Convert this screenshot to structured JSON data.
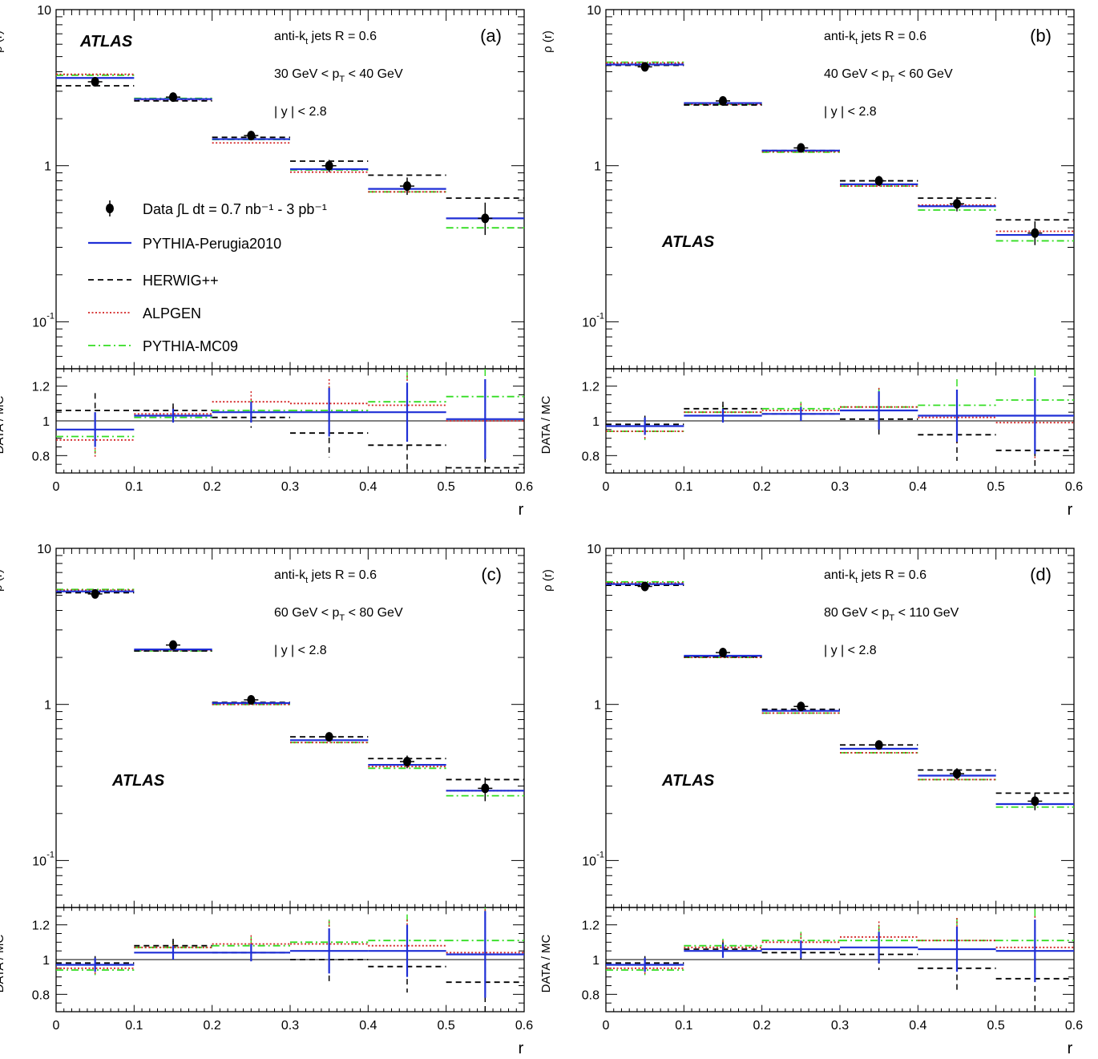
{
  "figure": {
    "legend_items": [
      {
        "key": "data",
        "label": "Data ∫L dt = 0.7 nb⁻¹ - 3 pb⁻¹"
      },
      {
        "key": "perugia",
        "label": "PYTHIA-Perugia2010"
      },
      {
        "key": "herwig",
        "label": "HERWIG++"
      },
      {
        "key": "alpgen",
        "label": "ALPGEN"
      },
      {
        "key": "mc09",
        "label": "PYTHIA-MC09"
      }
    ],
    "colors": {
      "data": "#000000",
      "perugia": "#1f2fd6",
      "herwig": "#000000",
      "alpgen": "#d22020",
      "mc09": "#33dd22"
    }
  },
  "chart_data": [
    {
      "type": "line",
      "panel_label": "(a)",
      "experiment": "ATLAS",
      "info": [
        "anti-kt jets R = 0.6",
        "30 GeV < pT < 40 GeV",
        "| y | < 2.8"
      ],
      "xlabel": "r",
      "ylabel_top": "ρ (r)",
      "ylabel_bottom": "DATA / MC",
      "xlim": [
        0,
        0.6
      ],
      "ylim_top": [
        0.05,
        10
      ],
      "ylim_bottom": [
        0.7,
        1.3
      ],
      "yscale_top": "log",
      "x_ticks": [
        "0",
        "0.1",
        "0.2",
        "0.3",
        "0.4",
        "0.5",
        "0.6"
      ],
      "y_ticks_top": [
        "10⁻¹",
        "1",
        "10"
      ],
      "y_ticks_bottom": [
        "0.8",
        "1",
        "1.2"
      ],
      "bins": [
        0.05,
        0.15,
        0.25,
        0.35,
        0.45,
        0.55
      ],
      "data": {
        "values": [
          3.45,
          2.75,
          1.56,
          1.0,
          0.74,
          0.46
        ],
        "err_lo": [
          0.2,
          0.12,
          0.08,
          0.09,
          0.09,
          0.1
        ],
        "err_hi": [
          0.2,
          0.12,
          0.08,
          0.09,
          0.1,
          0.12
        ]
      },
      "series": [
        {
          "name": "PYTHIA-Perugia2010",
          "values": [
            3.65,
            2.67,
            1.48,
            0.95,
            0.71,
            0.46
          ]
        },
        {
          "name": "HERWIG++",
          "values": [
            3.25,
            2.6,
            1.52,
            1.07,
            0.87,
            0.62
          ]
        },
        {
          "name": "ALPGEN",
          "values": [
            3.85,
            2.65,
            1.4,
            0.91,
            0.68,
            0.46
          ]
        },
        {
          "name": "PYTHIA-MC09",
          "values": [
            3.8,
            2.7,
            1.47,
            0.94,
            0.68,
            0.4
          ]
        }
      ],
      "ratio": {
        "data_err": [
          0.1,
          0.04,
          0.06,
          0.14,
          0.17,
          0.23
        ],
        "series": [
          {
            "name": "PYTHIA-Perugia2010",
            "values": [
              0.95,
              1.03,
              1.05,
              1.05,
              1.05,
              1.01
            ]
          },
          {
            "name": "HERWIG++",
            "values": [
              1.06,
              1.06,
              1.02,
              0.93,
              0.86,
              0.73
            ]
          },
          {
            "name": "ALPGEN",
            "values": [
              0.89,
              1.04,
              1.11,
              1.1,
              1.09,
              1.0
            ]
          },
          {
            "name": "PYTHIA-MC09",
            "values": [
              0.91,
              1.02,
              1.06,
              1.06,
              1.11,
              1.14
            ]
          }
        ]
      }
    },
    {
      "type": "line",
      "panel_label": "(b)",
      "experiment": "ATLAS",
      "info": [
        "anti-kt jets R = 0.6",
        "40 GeV < pT < 60 GeV",
        "| y | < 2.8"
      ],
      "xlabel": "r",
      "ylabel_top": "ρ (r)",
      "ylabel_bottom": "DATA / MC",
      "xlim": [
        0,
        0.6
      ],
      "ylim_top": [
        0.05,
        10
      ],
      "ylim_bottom": [
        0.7,
        1.3
      ],
      "yscale_top": "log",
      "x_ticks": [
        "0",
        "0.1",
        "0.2",
        "0.3",
        "0.4",
        "0.5",
        "0.6"
      ],
      "y_ticks_top": [
        "10⁻¹",
        "1",
        "10"
      ],
      "y_ticks_bottom": [
        "0.8",
        "1",
        "1.2"
      ],
      "bins": [
        0.05,
        0.15,
        0.25,
        0.35,
        0.45,
        0.55
      ],
      "data": {
        "values": [
          4.3,
          2.6,
          1.3,
          0.8,
          0.57,
          0.37
        ],
        "err_lo": [
          0.18,
          0.1,
          0.06,
          0.06,
          0.06,
          0.06
        ],
        "err_hi": [
          0.18,
          0.1,
          0.06,
          0.06,
          0.06,
          0.07
        ]
      },
      "series": [
        {
          "name": "PYTHIA-Perugia2010",
          "values": [
            4.45,
            2.52,
            1.25,
            0.76,
            0.55,
            0.36
          ]
        },
        {
          "name": "HERWIG++",
          "values": [
            4.4,
            2.45,
            1.25,
            0.8,
            0.62,
            0.45
          ]
        },
        {
          "name": "ALPGEN",
          "values": [
            4.55,
            2.47,
            1.23,
            0.74,
            0.56,
            0.38
          ]
        },
        {
          "name": "PYTHIA-MC09",
          "values": [
            4.6,
            2.47,
            1.22,
            0.74,
            0.52,
            0.33
          ]
        }
      ],
      "ratio": {
        "data_err": [
          0.05,
          0.04,
          0.04,
          0.11,
          0.15,
          0.22
        ],
        "series": [
          {
            "name": "PYTHIA-Perugia2010",
            "values": [
              0.97,
              1.03,
              1.04,
              1.06,
              1.03,
              1.03
            ]
          },
          {
            "name": "HERWIG++",
            "values": [
              0.98,
              1.07,
              1.04,
              1.01,
              0.92,
              0.83
            ]
          },
          {
            "name": "ALPGEN",
            "values": [
              0.94,
              1.05,
              1.06,
              1.08,
              1.02,
              0.99
            ]
          },
          {
            "name": "PYTHIA-MC09",
            "values": [
              0.94,
              1.05,
              1.07,
              1.08,
              1.09,
              1.12
            ]
          }
        ]
      }
    },
    {
      "type": "line",
      "panel_label": "(c)",
      "experiment": "ATLAS",
      "info": [
        "anti-kt jets R = 0.6",
        "60 GeV < pT < 80 GeV",
        "| y | < 2.8"
      ],
      "xlabel": "r",
      "ylabel_top": "ρ (r)",
      "ylabel_bottom": "DATA / MC",
      "xlim": [
        0,
        0.6
      ],
      "ylim_top": [
        0.05,
        10
      ],
      "ylim_bottom": [
        0.7,
        1.3
      ],
      "yscale_top": "log",
      "x_ticks": [
        "0",
        "0.1",
        "0.2",
        "0.3",
        "0.4",
        "0.5",
        "0.6"
      ],
      "y_ticks_top": [
        "10⁻¹",
        "1",
        "10"
      ],
      "y_ticks_bottom": [
        "0.8",
        "1",
        "1.2"
      ],
      "bins": [
        0.05,
        0.15,
        0.25,
        0.35,
        0.45,
        0.55
      ],
      "data": {
        "values": [
          5.1,
          2.4,
          1.07,
          0.62,
          0.43,
          0.29
        ],
        "err_lo": [
          0.2,
          0.1,
          0.05,
          0.04,
          0.04,
          0.05
        ],
        "err_hi": [
          0.2,
          0.1,
          0.05,
          0.04,
          0.04,
          0.05
        ]
      },
      "series": [
        {
          "name": "PYTHIA-Perugia2010",
          "values": [
            5.3,
            2.25,
            1.02,
            0.59,
            0.41,
            0.28
          ]
        },
        {
          "name": "HERWIG++",
          "values": [
            5.2,
            2.2,
            1.03,
            0.62,
            0.45,
            0.33
          ]
        },
        {
          "name": "ALPGEN",
          "values": [
            5.4,
            2.22,
            1.0,
            0.57,
            0.4,
            0.28
          ]
        },
        {
          "name": "PYTHIA-MC09",
          "values": [
            5.45,
            2.2,
            1.0,
            0.57,
            0.39,
            0.26
          ]
        }
      ],
      "ratio": {
        "data_err": [
          0.04,
          0.04,
          0.05,
          0.13,
          0.15,
          0.25
        ],
        "series": [
          {
            "name": "PYTHIA-Perugia2010",
            "values": [
              0.97,
              1.04,
              1.04,
              1.05,
              1.05,
              1.03
            ]
          },
          {
            "name": "HERWIG++",
            "values": [
              0.98,
              1.08,
              1.04,
              1.0,
              0.96,
              0.87
            ]
          },
          {
            "name": "ALPGEN",
            "values": [
              0.95,
              1.07,
              1.09,
              1.09,
              1.08,
              1.04
            ]
          },
          {
            "name": "PYTHIA-MC09",
            "values": [
              0.94,
              1.07,
              1.08,
              1.1,
              1.11,
              1.11
            ]
          }
        ]
      }
    },
    {
      "type": "line",
      "panel_label": "(d)",
      "experiment": "ATLAS",
      "info": [
        "anti-kt jets R = 0.6",
        "80 GeV < pT < 110 GeV",
        "| y | < 2.8"
      ],
      "xlabel": "r",
      "ylabel_top": "ρ (r)",
      "ylabel_bottom": "DATA / MC",
      "xlim": [
        0,
        0.6
      ],
      "ylim_top": [
        0.05,
        10
      ],
      "ylim_bottom": [
        0.7,
        1.3
      ],
      "yscale_top": "log",
      "x_ticks": [
        "0",
        "0.1",
        "0.2",
        "0.3",
        "0.4",
        "0.5",
        "0.6"
      ],
      "y_ticks_top": [
        "10⁻¹",
        "1",
        "10"
      ],
      "y_ticks_bottom": [
        "0.8",
        "1",
        "1.2"
      ],
      "bins": [
        0.05,
        0.15,
        0.25,
        0.35,
        0.45,
        0.55
      ],
      "data": {
        "values": [
          5.7,
          2.15,
          0.97,
          0.55,
          0.36,
          0.24
        ],
        "err_lo": [
          0.2,
          0.08,
          0.04,
          0.03,
          0.03,
          0.03
        ],
        "err_hi": [
          0.2,
          0.08,
          0.04,
          0.03,
          0.03,
          0.03
        ]
      },
      "series": [
        {
          "name": "PYTHIA-Perugia2010",
          "values": [
            5.9,
            2.05,
            0.91,
            0.52,
            0.35,
            0.23
          ]
        },
        {
          "name": "HERWIG++",
          "values": [
            5.8,
            2.02,
            0.93,
            0.55,
            0.38,
            0.27
          ]
        },
        {
          "name": "ALPGEN",
          "values": [
            6.0,
            2.0,
            0.88,
            0.49,
            0.33,
            0.23
          ]
        },
        {
          "name": "PYTHIA-MC09",
          "values": [
            6.1,
            2.0,
            0.88,
            0.49,
            0.33,
            0.22
          ]
        }
      ],
      "ratio": {
        "data_err": [
          0.04,
          0.04,
          0.05,
          0.09,
          0.13,
          0.18
        ],
        "series": [
          {
            "name": "PYTHIA-Perugia2010",
            "values": [
              0.97,
              1.05,
              1.06,
              1.07,
              1.06,
              1.05
            ]
          },
          {
            "name": "HERWIG++",
            "values": [
              0.98,
              1.06,
              1.04,
              1.03,
              0.95,
              0.89
            ]
          },
          {
            "name": "ALPGEN",
            "values": [
              0.95,
              1.07,
              1.1,
              1.13,
              1.11,
              1.07
            ]
          },
          {
            "name": "PYTHIA-MC09",
            "values": [
              0.94,
              1.08,
              1.11,
              1.11,
              1.11,
              1.11
            ]
          }
        ]
      }
    }
  ]
}
